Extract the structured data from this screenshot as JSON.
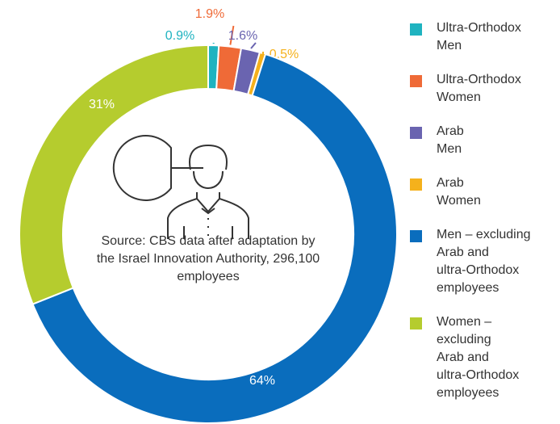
{
  "chart_data": {
    "type": "donut",
    "note": "Source: CBS data after adaptation by the Israel Innovation Authority, 296,100 employees",
    "series": [
      {
        "name": "Ultra-Orthodox\nMen",
        "color": "#1fb3c0",
        "values": [
          0.9
        ],
        "value_labels": [
          "0.9%"
        ]
      },
      {
        "name": "Ultra-Orthodox\nWomen",
        "color": "#ef6a37",
        "values": [
          1.9
        ],
        "value_labels": [
          "1.9%"
        ]
      },
      {
        "name": "Arab\nMen",
        "color": "#6a64b0",
        "values": [
          1.6
        ],
        "value_labels": [
          "1.6%"
        ]
      },
      {
        "name": "Arab\nWomen",
        "color": "#f5b11c",
        "values": [
          0.5
        ],
        "value_labels": [
          "0.5%"
        ]
      },
      {
        "name": "Men – excluding\nArab and\nultra-Orthodox\nemployees",
        "color": "#0a6dbd",
        "values": [
          64
        ],
        "value_labels": [
          "64%"
        ]
      },
      {
        "name": "Women –\nexcluding\nArab and\nultra-Orthodox\nemployees",
        "color": "#b5cc2e",
        "values": [
          31
        ],
        "value_labels": [
          "31%"
        ]
      }
    ]
  }
}
